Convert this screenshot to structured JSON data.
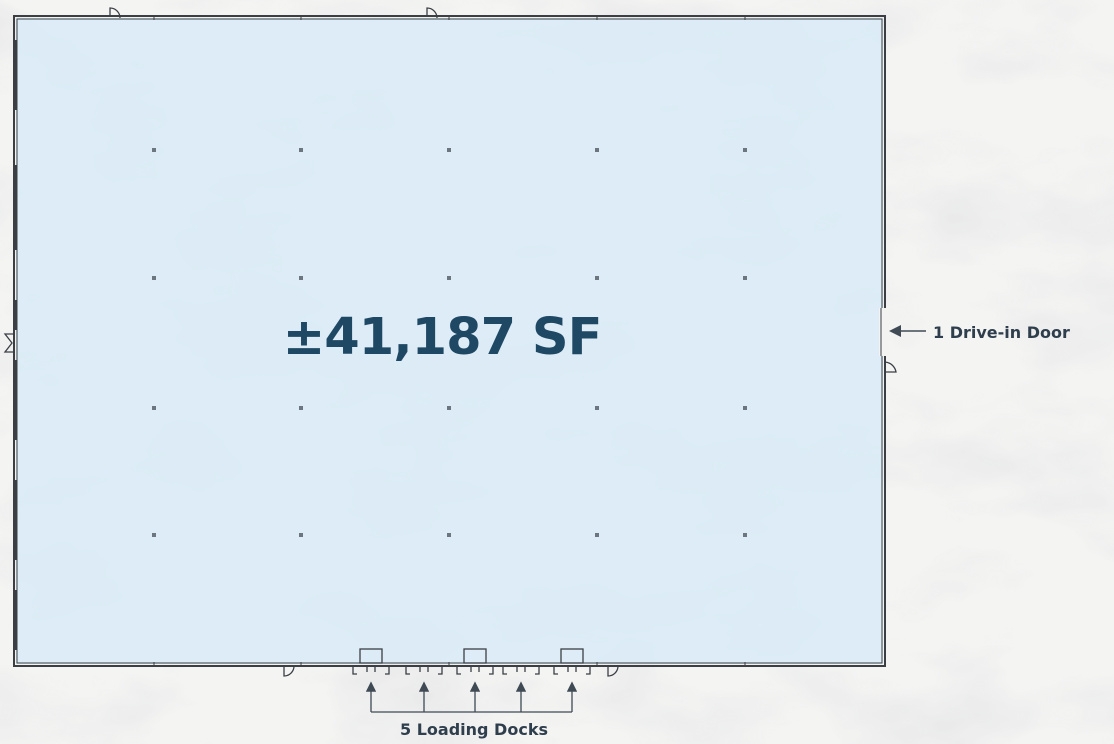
{
  "floor_plan": {
    "total_area": "±41,187 SF",
    "drive_in_doors": {
      "count": 1,
      "label": "1 Drive-in Door"
    },
    "loading_docks": {
      "count": 5,
      "label": "5 Loading Docks"
    }
  },
  "colors": {
    "floor_fill": "#d9ebf6",
    "wall": "#3b3f44",
    "label_text": "#1f4864",
    "callout_text": "#2f3e4d",
    "arrow": "#3f4a55",
    "background": "#f3f3f2"
  }
}
